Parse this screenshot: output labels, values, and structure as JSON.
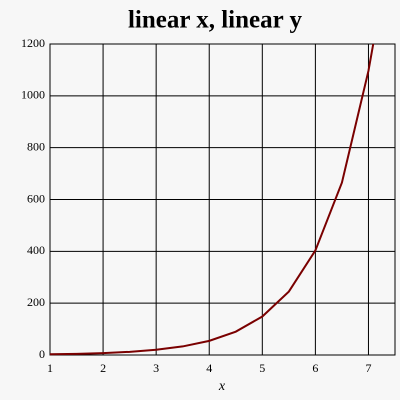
{
  "chart_data": {
    "type": "line",
    "title": "linear x, linear y",
    "x_label": "x",
    "x": [
      1,
      1.5,
      2,
      2.5,
      3,
      3.5,
      4,
      4.5,
      5,
      5.5,
      6,
      6.5,
      7,
      7.09
    ],
    "series": [
      {
        "color": "#7a0000",
        "values": [
          2.7,
          4.5,
          7.4,
          12.2,
          20.1,
          33.1,
          54.6,
          90,
          148.4,
          244.7,
          403.4,
          665.1,
          1096.6,
          1200
        ]
      }
    ],
    "xlim": [
      1,
      7.5
    ],
    "ylim": [
      0,
      1200
    ],
    "xticks": [
      1,
      2,
      3,
      4,
      5,
      6,
      7
    ],
    "yticks": [
      0,
      200,
      400,
      600,
      800,
      1000,
      1200
    ],
    "grid": true
  }
}
